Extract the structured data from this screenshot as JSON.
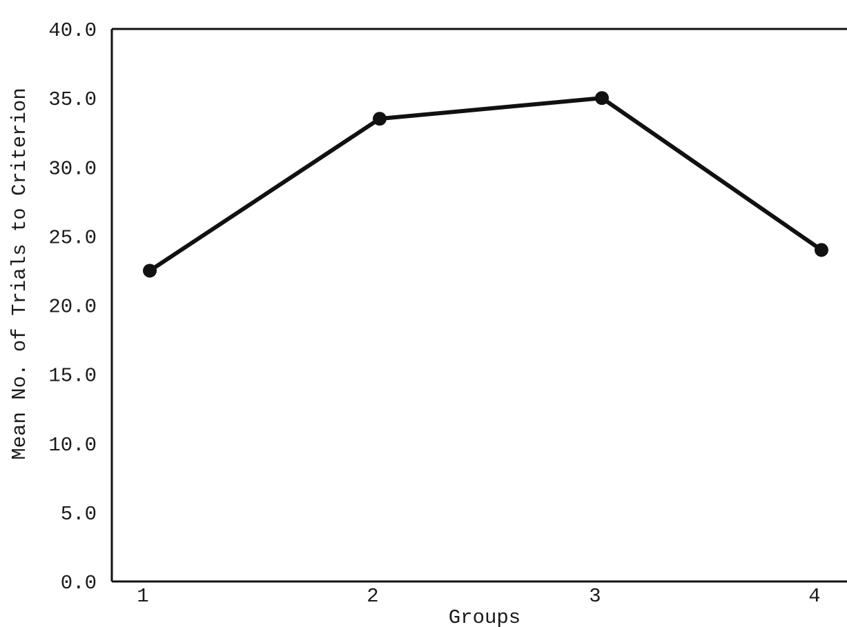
{
  "chart_data": {
    "type": "line",
    "xlabel": "Groups",
    "ylabel": "Mean No. of Trials to Criterion",
    "x": [
      1,
      2,
      3,
      4
    ],
    "x_tick_labels": [
      "1",
      "2",
      "3",
      "4"
    ],
    "ylim": [
      0,
      40
    ],
    "y_tick_labels": [
      "0.0",
      "5.0",
      "10.0",
      "15.0",
      "20.0",
      "25.0",
      "30.0",
      "35.0",
      "40.0"
    ],
    "grid": false,
    "series": [
      {
        "values": [
          22.5,
          33.5,
          35.0,
          24.0
        ],
        "color": "#111111"
      }
    ]
  }
}
